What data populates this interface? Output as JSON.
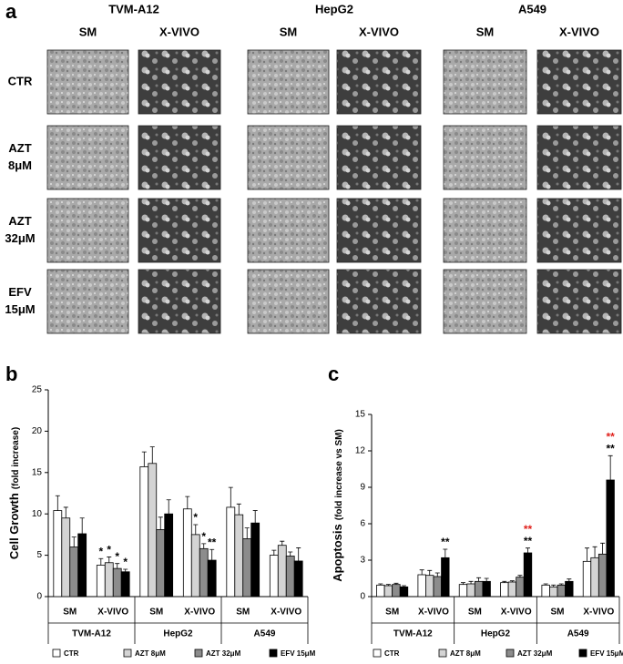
{
  "panel_a": {
    "label": "a",
    "cell_lines": [
      "TVM-A12",
      "HepG2",
      "A549"
    ],
    "media": [
      "SM",
      "X-VIVO"
    ],
    "rows": [
      [
        "CTR"
      ],
      [
        "AZT",
        "8μM"
      ],
      [
        "AZT",
        "32μM"
      ],
      [
        "EFV",
        "15μM"
      ]
    ]
  },
  "chart_data": [
    {
      "type": "bar",
      "panel_label": "b",
      "y_label": "Cell Growth",
      "y_label_note": "(fold increase)",
      "categories": [
        "SM",
        "X-VIVO",
        "SM",
        "X-VIVO",
        "SM",
        "X-VIVO"
      ],
      "groups": [
        "TVM-A12",
        "HepG2",
        "A549"
      ],
      "ylim": [
        0,
        25
      ],
      "yticks": [
        0,
        5,
        10,
        15,
        20,
        25
      ],
      "series": [
        {
          "name": "CTR",
          "color": "#ffffff",
          "values": [
            10.4,
            3.8,
            15.7,
            10.6,
            10.8,
            5.0
          ],
          "errors": [
            1.8,
            0.8,
            1.8,
            1.5,
            2.4,
            0.6
          ],
          "stars": [
            null,
            "*",
            null,
            null,
            null,
            null
          ]
        },
        {
          "name": "AZT 8μM",
          "color": "#d4d4d4",
          "values": [
            9.5,
            4.1,
            16.1,
            7.5,
            9.9,
            6.2
          ],
          "errors": [
            1.3,
            0.7,
            2.0,
            1.2,
            1.3,
            0.5
          ],
          "stars": [
            null,
            "*",
            null,
            "*",
            null,
            null
          ]
        },
        {
          "name": "AZT 32μM",
          "color": "#8c8c8c",
          "values": [
            6.0,
            3.4,
            8.1,
            5.8,
            7.0,
            4.9
          ],
          "errors": [
            1.2,
            0.6,
            1.5,
            0.6,
            1.3,
            0.5
          ],
          "stars": [
            null,
            "*",
            null,
            "*",
            null,
            null
          ]
        },
        {
          "name": "EFV 15μM",
          "color": "#000000",
          "values": [
            7.6,
            3.0,
            10.0,
            4.4,
            8.9,
            4.3
          ],
          "errors": [
            1.9,
            0.3,
            1.7,
            1.3,
            1.5,
            1.6
          ],
          "stars": [
            null,
            "*",
            null,
            "**",
            null,
            null
          ]
        }
      ]
    },
    {
      "type": "bar",
      "panel_label": "c",
      "y_label": "Apoptosis",
      "y_label_note": "(fold increase vs SM)",
      "categories": [
        "SM",
        "X-VIVO",
        "SM",
        "X-VIVO",
        "SM",
        "X-VIVO"
      ],
      "groups": [
        "TVM-A12",
        "HepG2",
        "A549"
      ],
      "ylim": [
        0,
        15
      ],
      "yticks": [
        0,
        3,
        6,
        9,
        12,
        15
      ],
      "stars_red_color": "#e0201b",
      "series": [
        {
          "name": "CTR",
          "color": "#ffffff",
          "values": [
            0.95,
            1.8,
            1.0,
            1.15,
            0.95,
            2.9
          ],
          "errors": [
            0.1,
            0.4,
            0.15,
            0.1,
            0.1,
            1.1
          ],
          "stars": [
            null,
            null,
            null,
            null,
            null,
            null
          ]
        },
        {
          "name": "AZT 8μM",
          "color": "#d4d4d4",
          "values": [
            0.9,
            1.75,
            1.05,
            1.2,
            0.8,
            3.2
          ],
          "errors": [
            0.1,
            0.4,
            0.2,
            0.1,
            0.15,
            0.9
          ],
          "stars": [
            null,
            null,
            null,
            null,
            null,
            null
          ]
        },
        {
          "name": "AZT 32μM",
          "color": "#8c8c8c",
          "values": [
            1.0,
            1.65,
            1.25,
            1.6,
            0.95,
            3.5
          ],
          "errors": [
            0.1,
            0.3,
            0.3,
            0.15,
            0.1,
            0.9
          ],
          "stars": [
            null,
            null,
            null,
            null,
            null,
            null
          ]
        },
        {
          "name": "EFV 15μM",
          "color": "#000000",
          "values": [
            0.8,
            3.2,
            1.25,
            3.6,
            1.25,
            9.6
          ],
          "errors": [
            0.1,
            0.7,
            0.25,
            0.4,
            0.2,
            2.0
          ],
          "stars": [
            null,
            "**",
            null,
            "**",
            null,
            "**"
          ],
          "stars_red": [
            null,
            null,
            null,
            "**",
            null,
            "**"
          ]
        }
      ]
    }
  ]
}
